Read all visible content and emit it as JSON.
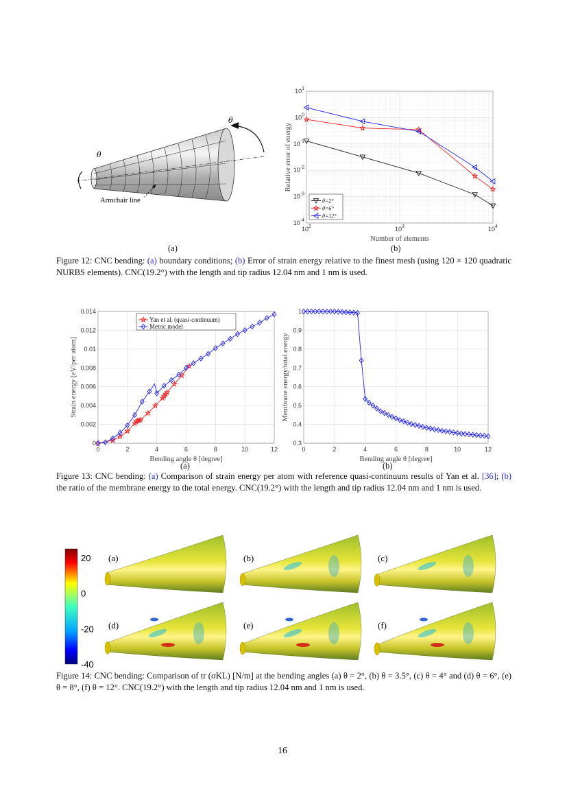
{
  "figure12": {
    "panel_a": {
      "theta_left": "θ",
      "theta_right": "θ",
      "armchair_label": "Armchair line",
      "sublabel": "(a)"
    },
    "panel_b_sublabel": "(b)",
    "caption": {
      "prefix": "Figure 12: CNC bending: ",
      "link_a": "(a)",
      "mid": " boundary conditions; ",
      "link_b": "(b)",
      "rest": " Error of strain energy relative to the finest mesh (using 120 × 120 quadratic NURBS elements). CNC(19.2°) with the length and tip radius 12.04 nm and 1 nm is used."
    }
  },
  "figure13": {
    "sublabel_a": "(a)",
    "sublabel_b": "(b)",
    "caption": {
      "prefix": "Figure 13: CNC bending: ",
      "link_a": "(a)",
      "mid": " Comparison of strain energy per atom with reference quasi-continuum results of Yan et al. ",
      "ref": "[36]",
      "mid2": "; ",
      "link_b": "(b)",
      "rest": " the ratio of the membrane energy to the total energy. CNC(19.2°) with the length and tip radius 12.04 nm and 1 nm is used."
    }
  },
  "figure14": {
    "panels": [
      "(a)",
      "(b)",
      "(c)",
      "(d)",
      "(e)",
      "(f)"
    ],
    "colorbar": {
      "ticks": [
        "20",
        "0",
        "-20",
        "-40"
      ],
      "range": [
        -40,
        25
      ],
      "colormap": "jet"
    },
    "caption": "Figure 14: CNC bending: Comparison of tr (σKL) [N/m] at the bending angles (a) θ = 2°, (b) θ = 3.5°, (c) θ = 4° and (d) θ = 6°, (e) θ = 8°, (f) θ = 12°. CNC(19.2°) with the length and tip radius 12.04 nm and 1 nm is used."
  },
  "page_number": "16",
  "chart_data": [
    {
      "id": "fig12b",
      "type": "line",
      "xlabel": "Number of elements",
      "ylabel": "Relative error of energy",
      "xscale": "log",
      "yscale": "log",
      "xlim": [
        100,
        10000
      ],
      "ylim": [
        0.0001,
        10
      ],
      "xticks": [
        "10^2",
        "10^3",
        "10^4"
      ],
      "yticks": [
        "10^-4",
        "10^-3",
        "10^-2",
        "10^-1",
        "10^0",
        "10^1"
      ],
      "grid": true,
      "minor_grid": true,
      "legend": "bottom-left",
      "series": [
        {
          "name": "θ=2°",
          "color": "#222222",
          "marker": "triangle-down",
          "x": [
            100,
            400,
            1600,
            6400,
            10000
          ],
          "y": [
            0.13,
            0.032,
            0.0078,
            0.0012,
            0.00045
          ]
        },
        {
          "name": "θ=6°",
          "color": "#ee2222",
          "marker": "star",
          "x": [
            100,
            400,
            1600,
            6400,
            10000
          ],
          "y": [
            0.85,
            0.4,
            0.35,
            0.006,
            0.0019
          ]
        },
        {
          "name": "θ=12°",
          "color": "#2222ee",
          "marker": "triangle-left",
          "x": [
            100,
            400,
            1600,
            6400,
            10000
          ],
          "y": [
            2.4,
            0.72,
            0.3,
            0.013,
            0.0038
          ]
        }
      ]
    },
    {
      "id": "fig13a",
      "type": "line",
      "xlabel": "Bending angle θ [degree]",
      "ylabel": "Strain energy [eV/per atom]",
      "xlim": [
        0,
        12
      ],
      "ylim": [
        0,
        0.014
      ],
      "xticks": [
        "0",
        "2",
        "4",
        "6",
        "8",
        "10",
        "12"
      ],
      "yticks": [
        "0",
        "0.002",
        "0.004",
        "0.006",
        "0.008",
        "0.01",
        "0.012",
        "0.014"
      ],
      "grid": true,
      "legend": "top-center",
      "series": [
        {
          "name": "Yan et al. (quasi-continuum)",
          "color": "#ee2222",
          "marker": "star",
          "x": [
            0,
            1,
            1.5,
            2,
            2.5,
            2.6,
            2.7,
            2.8,
            2.9,
            3.4,
            3.9,
            4.4,
            4.5,
            4.6,
            4.7,
            5.2,
            5.7,
            6.2
          ],
          "y": [
            0,
            0.0003,
            0.0007,
            0.0013,
            0.0021,
            0.0023,
            0.0024,
            0.0024,
            0.0025,
            0.0032,
            0.004,
            0.0048,
            0.005,
            0.0052,
            0.0054,
            0.0063,
            0.0072,
            0.0082
          ]
        },
        {
          "name": "Metric model",
          "color": "#2222ee",
          "marker": "diamond",
          "x": [
            0,
            0.5,
            1,
            1.5,
            2,
            2.5,
            3,
            3.5,
            3.85,
            4,
            4.5,
            5,
            5.5,
            6,
            6.5,
            7,
            7.5,
            8,
            8.5,
            9,
            9.5,
            10,
            10.5,
            11,
            11.5,
            12
          ],
          "y": [
            0,
            0.0001,
            0.0005,
            0.0011,
            0.0019,
            0.003,
            0.0044,
            0.0055,
            0.0063,
            0.0053,
            0.0061,
            0.0067,
            0.0073,
            0.008,
            0.0085,
            0.009,
            0.0095,
            0.0101,
            0.0106,
            0.0111,
            0.0116,
            0.012,
            0.0124,
            0.0128,
            0.0133,
            0.0137
          ]
        }
      ]
    },
    {
      "id": "fig13b",
      "type": "line",
      "xlabel": "Bending angle θ [degree]",
      "ylabel": "Membrane energy/total energy",
      "xlim": [
        0,
        12
      ],
      "ylim": [
        0.3,
        1
      ],
      "xticks": [
        "0",
        "2",
        "4",
        "6",
        "8",
        "10",
        "12"
      ],
      "yticks": [
        "0.3",
        "0.4",
        "0.5",
        "0.6",
        "0.7",
        "0.8",
        "0.9",
        "1"
      ],
      "grid": true,
      "series": [
        {
          "color": "#2222ee",
          "marker": "diamond",
          "x": [
            0,
            0.25,
            0.5,
            0.75,
            1,
            1.25,
            1.5,
            1.75,
            2,
            2.25,
            2.5,
            2.75,
            3,
            3.25,
            3.5,
            3.75,
            4,
            4.25,
            4.5,
            4.75,
            5,
            5.25,
            5.5,
            5.75,
            6,
            6.25,
            6.5,
            6.75,
            7,
            7.25,
            7.5,
            7.75,
            8,
            8.25,
            8.5,
            8.75,
            9,
            9.25,
            9.5,
            9.75,
            10,
            10.25,
            10.5,
            10.75,
            11,
            11.25,
            11.5,
            11.75,
            12
          ],
          "y": [
            1,
            1,
            1,
            1,
            1,
            1,
            1,
            1,
            1,
            0.998,
            0.997,
            0.996,
            0.995,
            0.994,
            0.992,
            0.74,
            0.535,
            0.515,
            0.5,
            0.485,
            0.47,
            0.46,
            0.45,
            0.44,
            0.432,
            0.423,
            0.416,
            0.409,
            0.402,
            0.397,
            0.392,
            0.387,
            0.382,
            0.378,
            0.374,
            0.37,
            0.366,
            0.363,
            0.36,
            0.357,
            0.354,
            0.351,
            0.349,
            0.347,
            0.345,
            0.343,
            0.341,
            0.339,
            0.337
          ]
        }
      ]
    }
  ]
}
